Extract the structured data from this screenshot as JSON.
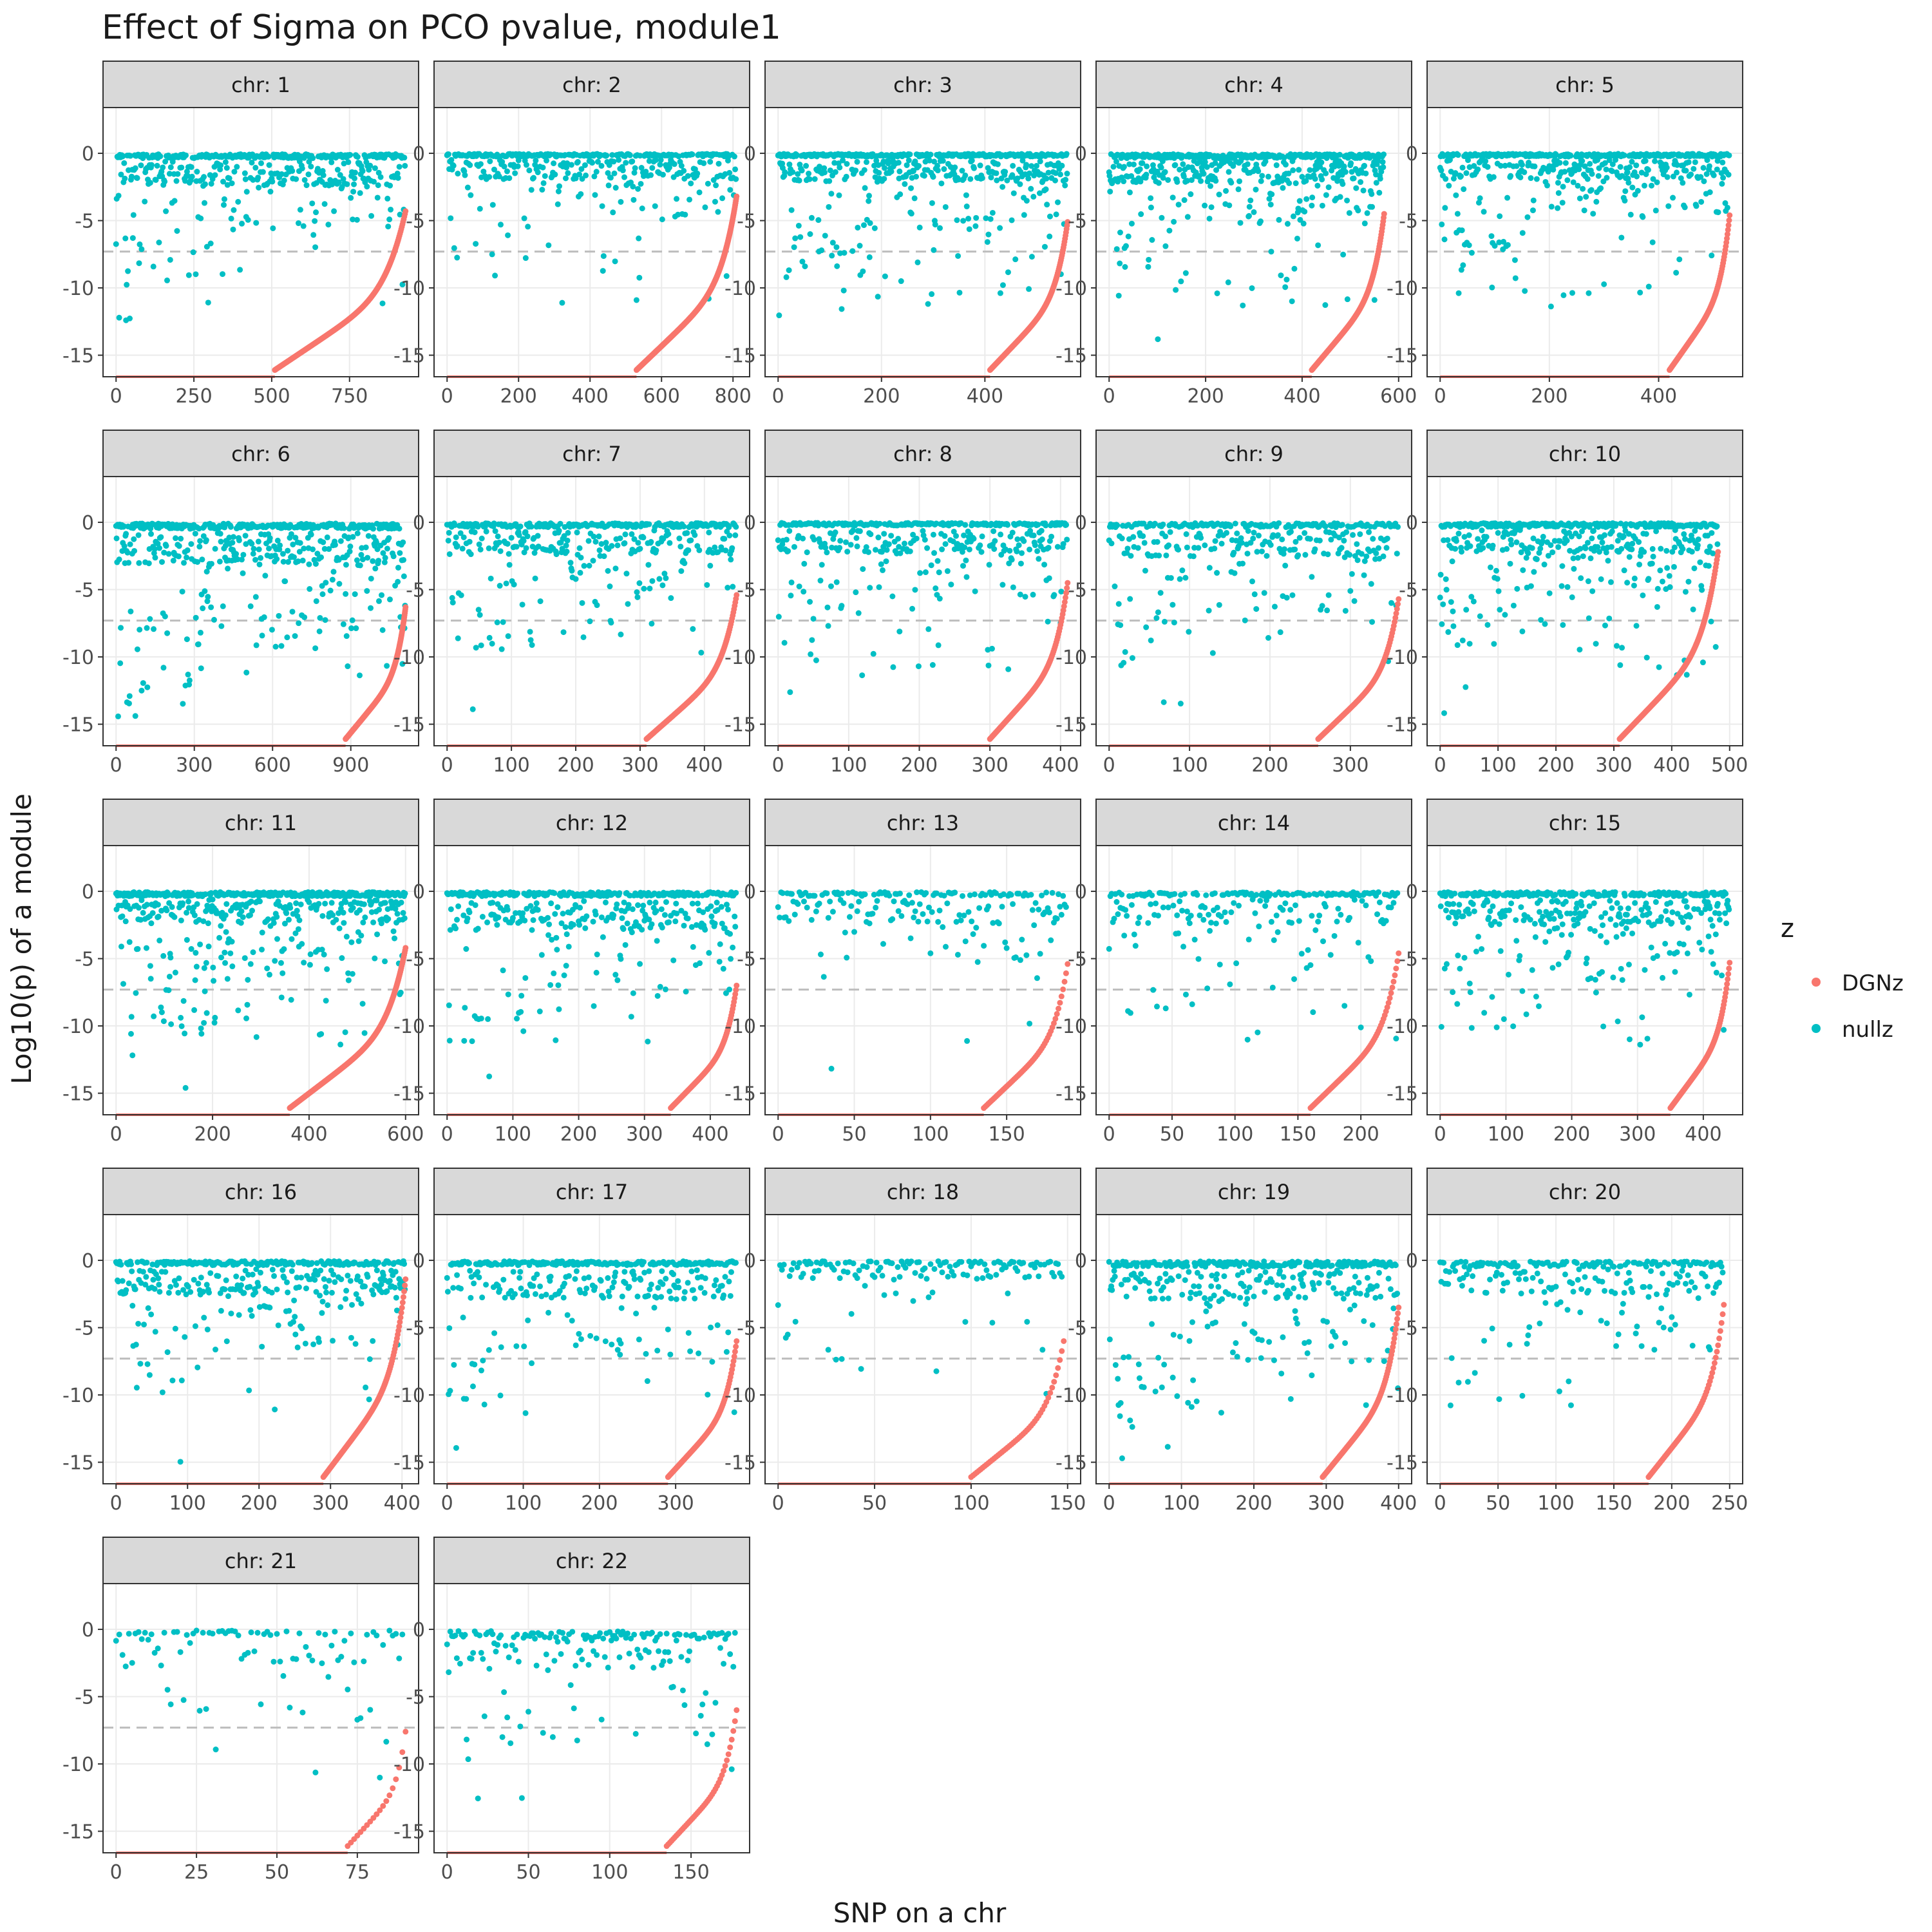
{
  "title": "Effect of Sigma on PCO pvalue, module1",
  "chart_data": {
    "type": "scatter",
    "title": "Effect of Sigma on PCO pvalue, module1",
    "xlabel": "SNP on a chr",
    "ylabel": "Log10(p) of a module",
    "ylim": [
      -16.6,
      3.4
    ],
    "y_ticks": [
      0,
      -5,
      -10,
      -15
    ],
    "y_tick_labels": [
      "0",
      "-5",
      "-10",
      "-15"
    ],
    "reference_line": {
      "y": -7.3,
      "style": "dashed",
      "color": "#bdbdbd"
    },
    "legend": {
      "title": "z",
      "placement": "right",
      "entries": [
        {
          "label": "DGNz",
          "color": "#F8766D"
        },
        {
          "label": "nullz",
          "color": "#00BFC4"
        }
      ]
    },
    "grid": true,
    "facets": [
      {
        "label": "chr: 1",
        "n": 930,
        "n_floor": 510,
        "x_ticks": [
          0,
          250,
          500,
          750
        ],
        "x_tick_labels": [
          "0",
          "250",
          "500",
          "750"
        ],
        "null_levels": [
          -0.3,
          -1.5,
          -3.0
        ],
        "curve_end": -4.3,
        "seed": 11
      },
      {
        "label": "chr: 2",
        "n": 810,
        "n_floor": 530,
        "x_ticks": [
          0,
          200,
          400,
          600,
          800
        ],
        "x_tick_labels": [
          "0",
          "200",
          "400",
          "600",
          "800"
        ],
        "null_levels": [
          -0.2,
          -1.2,
          -2.6
        ],
        "curve_end": -3.2,
        "seed": 12
      },
      {
        "label": "chr: 3",
        "n": 560,
        "n_floor": 410,
        "x_ticks": [
          0,
          200,
          400
        ],
        "x_tick_labels": [
          "0",
          "200",
          "400"
        ],
        "null_levels": [
          -0.2,
          -1.3,
          -3.0
        ],
        "curve_end": -5.1,
        "seed": 13
      },
      {
        "label": "chr: 4",
        "n": 570,
        "n_floor": 420,
        "x_ticks": [
          0,
          200,
          400,
          600
        ],
        "x_tick_labels": [
          "0",
          "200",
          "400",
          "600"
        ],
        "null_levels": [
          -0.3,
          -1.4,
          -2.8
        ],
        "curve_end": -4.5,
        "seed": 14
      },
      {
        "label": "chr: 5",
        "n": 530,
        "n_floor": 420,
        "x_ticks": [
          0,
          200,
          400
        ],
        "x_tick_labels": [
          "0",
          "200",
          "400"
        ],
        "null_levels": [
          -0.2,
          -1.2,
          -2.5
        ],
        "curve_end": -4.6,
        "seed": 15
      },
      {
        "label": "chr: 6",
        "n": 1110,
        "n_floor": 880,
        "x_ticks": [
          0,
          300,
          600,
          900
        ],
        "x_tick_labels": [
          "0",
          "300",
          "600",
          "900"
        ],
        "null_levels": [
          -0.4,
          -2.0,
          -4.5
        ],
        "curve_end": -6.3,
        "seed": 16
      },
      {
        "label": "chr: 7",
        "n": 450,
        "n_floor": 310,
        "x_ticks": [
          0,
          100,
          200,
          300,
          400
        ],
        "x_tick_labels": [
          "0",
          "100",
          "200",
          "300",
          "400"
        ],
        "null_levels": [
          -0.3,
          -1.5,
          -3.2
        ],
        "curve_end": -5.4,
        "seed": 17
      },
      {
        "label": "chr: 8",
        "n": 410,
        "n_floor": 300,
        "x_ticks": [
          0,
          100,
          200,
          300,
          400
        ],
        "x_tick_labels": [
          "0",
          "100",
          "200",
          "300",
          "400"
        ],
        "null_levels": [
          -0.2,
          -1.4,
          -3.0
        ],
        "curve_end": -4.5,
        "seed": 18
      },
      {
        "label": "chr: 9",
        "n": 360,
        "n_floor": 260,
        "x_ticks": [
          0,
          100,
          200,
          300
        ],
        "x_tick_labels": [
          "0",
          "100",
          "200",
          "300"
        ],
        "null_levels": [
          -0.3,
          -1.6,
          -3.5
        ],
        "curve_end": -5.7,
        "seed": 19
      },
      {
        "label": "chr: 10",
        "n": 480,
        "n_floor": 310,
        "x_ticks": [
          0,
          100,
          200,
          300,
          400,
          500
        ],
        "x_tick_labels": [
          "0",
          "100",
          "200",
          "300",
          "400",
          "500"
        ],
        "null_levels": [
          -0.3,
          -1.4,
          -3.0
        ],
        "curve_end": -2.2,
        "seed": 20
      },
      {
        "label": "chr: 11",
        "n": 600,
        "n_floor": 360,
        "x_ticks": [
          0,
          200,
          400,
          600
        ],
        "x_tick_labels": [
          "0",
          "200",
          "400",
          "600"
        ],
        "null_levels": [
          -0.3,
          -1.5,
          -3.5
        ],
        "curve_end": -4.2,
        "seed": 21
      },
      {
        "label": "chr: 12",
        "n": 440,
        "n_floor": 340,
        "x_ticks": [
          0,
          100,
          200,
          300,
          400
        ],
        "x_tick_labels": [
          "0",
          "100",
          "200",
          "300",
          "400"
        ],
        "null_levels": [
          -0.3,
          -1.8,
          -4.0
        ],
        "curve_end": -7.0,
        "seed": 22
      },
      {
        "label": "chr: 13",
        "n": 190,
        "n_floor": 135,
        "x_ticks": [
          0,
          50,
          100,
          150
        ],
        "x_tick_labels": [
          "0",
          "50",
          "100",
          "150"
        ],
        "null_levels": [
          -0.3,
          -1.5,
          -2.8
        ],
        "curve_end": -5.4,
        "seed": 23
      },
      {
        "label": "chr: 14",
        "n": 230,
        "n_floor": 160,
        "x_ticks": [
          0,
          50,
          100,
          150,
          200
        ],
        "x_tick_labels": [
          "0",
          "50",
          "100",
          "150",
          "200"
        ],
        "null_levels": [
          -0.3,
          -1.5,
          -3.0
        ],
        "curve_end": -4.6,
        "seed": 24
      },
      {
        "label": "chr: 15",
        "n": 440,
        "n_floor": 350,
        "x_ticks": [
          0,
          100,
          200,
          300,
          400
        ],
        "x_tick_labels": [
          "0",
          "100",
          "200",
          "300",
          "400"
        ],
        "null_levels": [
          -0.3,
          -1.6,
          -3.5
        ],
        "curve_end": -5.3,
        "seed": 25
      },
      {
        "label": "chr: 16",
        "n": 405,
        "n_floor": 290,
        "x_ticks": [
          0,
          100,
          200,
          300,
          400
        ],
        "x_tick_labels": [
          "0",
          "100",
          "200",
          "300",
          "400"
        ],
        "null_levels": [
          -0.3,
          -1.6,
          -3.5
        ],
        "curve_end": -1.4,
        "seed": 26
      },
      {
        "label": "chr: 17",
        "n": 380,
        "n_floor": 290,
        "x_ticks": [
          0,
          100,
          200,
          300
        ],
        "x_tick_labels": [
          "0",
          "100",
          "200",
          "300"
        ],
        "null_levels": [
          -0.3,
          -1.8,
          -3.8
        ],
        "curve_end": -6.0,
        "seed": 27
      },
      {
        "label": "chr: 18",
        "n": 148,
        "n_floor": 100,
        "x_ticks": [
          0,
          50,
          100,
          150
        ],
        "x_tick_labels": [
          "0",
          "50",
          "100",
          "150"
        ],
        "null_levels": [
          -0.3,
          -0.9,
          -2.5
        ],
        "curve_end": -6.0,
        "seed": 28
      },
      {
        "label": "chr: 19",
        "n": 400,
        "n_floor": 295,
        "x_ticks": [
          0,
          100,
          200,
          300,
          400
        ],
        "x_tick_labels": [
          "0",
          "100",
          "200",
          "300",
          "400"
        ],
        "null_levels": [
          -0.4,
          -1.8,
          -4.0
        ],
        "curve_end": -3.5,
        "seed": 29
      },
      {
        "label": "chr: 20",
        "n": 245,
        "n_floor": 180,
        "x_ticks": [
          0,
          50,
          100,
          150,
          200,
          250
        ],
        "x_tick_labels": [
          "0",
          "50",
          "100",
          "150",
          "200",
          "250"
        ],
        "null_levels": [
          -0.4,
          -1.6,
          -3.6
        ],
        "curve_end": -3.3,
        "seed": 30
      },
      {
        "label": "chr: 21",
        "n": 90,
        "n_floor": 72,
        "x_ticks": [
          0,
          25,
          50,
          75
        ],
        "x_tick_labels": [
          "0",
          "25",
          "50",
          "75"
        ],
        "null_levels": [
          -0.4,
          -1.8,
          -3.5
        ],
        "curve_end": -7.6,
        "seed": 31
      },
      {
        "label": "chr: 22",
        "n": 178,
        "n_floor": 135,
        "x_ticks": [
          0,
          50,
          100,
          150
        ],
        "x_tick_labels": [
          "0",
          "50",
          "100",
          "150"
        ],
        "null_levels": [
          -0.6,
          -2.0,
          -4.5
        ],
        "curve_end": -6.0,
        "seed": 32
      }
    ]
  }
}
